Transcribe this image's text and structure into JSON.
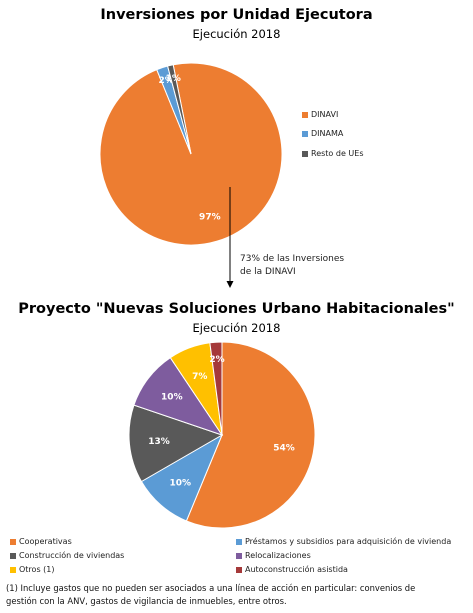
{
  "chart_data": [
    {
      "type": "pie",
      "title": "Inversiones por Unidad Ejecutora",
      "subtitle": "Ejecución 2018",
      "categories": [
        "DINAVI",
        "DINAMA",
        "Resto de UEs"
      ],
      "values": [
        97,
        2,
        1
      ],
      "data_labels": [
        "97%",
        "2%",
        "1%"
      ],
      "colors": [
        "#ED7D31",
        "#5B9BD5",
        "#595959"
      ],
      "legend_position": "right"
    },
    {
      "type": "pie",
      "title": "Proyecto \"Nuevas Soluciones Urbano Habitacionales\"",
      "subtitle": "Ejecución 2018",
      "categories": [
        "Cooperativas",
        "Préstamos y subsidios para adquisición de vivienda",
        "Construcción de viviendas",
        "Relocalizaciones",
        "Otros (1)",
        "Autoconstrucción asistida"
      ],
      "values": [
        54,
        10,
        13,
        10,
        7,
        2
      ],
      "data_labels": [
        "54%",
        "10%",
        "13%",
        "10%",
        "7%",
        "2%"
      ],
      "colors": [
        "#ED7D31",
        "#5B9BD5",
        "#595959",
        "#7E5C9E",
        "#FFC000",
        "#A5393A"
      ],
      "legend_position": "bottom"
    }
  ],
  "connector": {
    "line1": "73% de las Inversiones",
    "line2": "de la DINAVI"
  },
  "footnote": {
    "line1": "(1) Incluye gastos que no pueden ser asociados a una línea de acción en particular: convenios de",
    "line2": "gestión con la ANV, gastos de vigilancia de inmuebles, entre otros."
  }
}
